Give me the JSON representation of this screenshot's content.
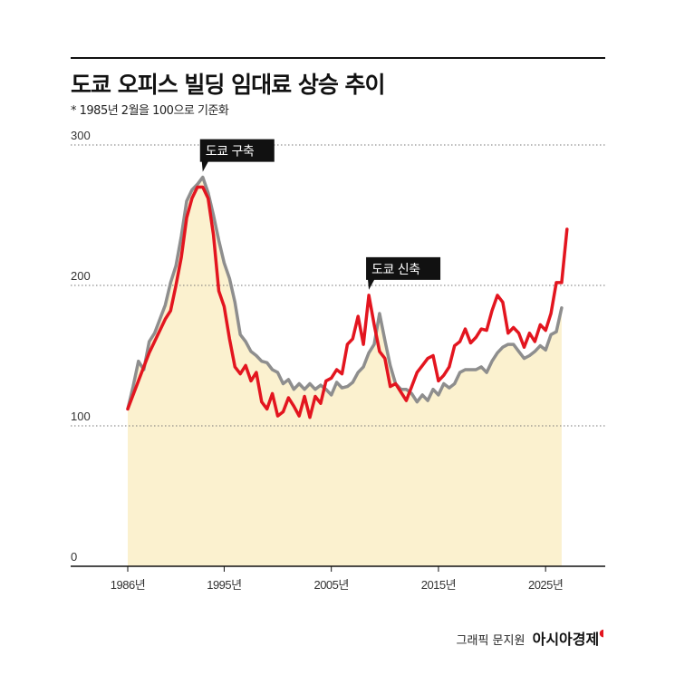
{
  "header": {
    "title": "도쿄 오피스 빌딩 임대료 상승 추이",
    "subtitle": "* 1985년 2월을 100으로 기준화"
  },
  "credit": {
    "prefix": "그래픽 문지원",
    "brand": "아시아경제"
  },
  "colors": {
    "new_line": "#e3151f",
    "old_line": "#8e8e8e",
    "area_fill": "#fbf1cf",
    "grid": "#777777"
  },
  "chart_data": {
    "type": "line",
    "title": "도쿄 오피스 빌딩 임대료 상승 추이",
    "subtitle": "* 1985년 2월을 100으로 기준화",
    "xlim": [
      1986,
      2026
    ],
    "ylim": [
      0,
      300
    ],
    "yticks": [
      0,
      100,
      200,
      300
    ],
    "yticks_labels": [
      "0",
      "100",
      "200",
      "300"
    ],
    "xticks": [
      1986,
      1995,
      2005,
      2015,
      2025
    ],
    "xticks_labels": [
      "1986년",
      "1995년",
      "2005년",
      "2015년",
      "2025년"
    ],
    "grid": "dotted horizontal",
    "legend": "none",
    "area_under": "old",
    "series": [
      {
        "key": "new",
        "points": [
          [
            1986,
            112
          ],
          [
            1986.5,
            122
          ],
          [
            1987,
            132
          ],
          [
            1987.5,
            142
          ],
          [
            1988,
            152
          ],
          [
            1988.5,
            160
          ],
          [
            1989,
            168
          ],
          [
            1989.5,
            176
          ],
          [
            1990,
            182
          ],
          [
            1990.5,
            200
          ],
          [
            1991,
            220
          ],
          [
            1991.5,
            248
          ],
          [
            1992,
            262
          ],
          [
            1992.5,
            270
          ],
          [
            1993,
            270
          ],
          [
            1993.5,
            262
          ],
          [
            1994,
            236
          ],
          [
            1994.5,
            196
          ],
          [
            1995,
            185
          ],
          [
            1995.5,
            162
          ],
          [
            1996,
            142
          ],
          [
            1996.5,
            137
          ],
          [
            1997,
            143
          ],
          [
            1997.5,
            132
          ],
          [
            1998,
            138
          ],
          [
            1998.5,
            117
          ],
          [
            1999,
            112
          ],
          [
            1999.5,
            123
          ],
          [
            2000,
            107
          ],
          [
            2000.5,
            110
          ],
          [
            2001,
            120
          ],
          [
            2001.5,
            114
          ],
          [
            2002,
            107
          ],
          [
            2002.5,
            121
          ],
          [
            2003,
            106
          ],
          [
            2003.5,
            121
          ],
          [
            2004,
            116
          ],
          [
            2004.5,
            132
          ],
          [
            2005,
            134
          ],
          [
            2005.5,
            140
          ],
          [
            2006,
            137
          ],
          [
            2006.5,
            158
          ],
          [
            2007,
            162
          ],
          [
            2007.5,
            178
          ],
          [
            2008,
            158
          ],
          [
            2008.5,
            193
          ],
          [
            2009,
            172
          ],
          [
            2009.5,
            153
          ],
          [
            2010,
            148
          ],
          [
            2010.5,
            128
          ],
          [
            2011,
            130
          ],
          [
            2011.5,
            124
          ],
          [
            2012,
            118
          ],
          [
            2012.5,
            128
          ],
          [
            2013,
            138
          ],
          [
            2013.5,
            143
          ],
          [
            2014,
            148
          ],
          [
            2014.5,
            150
          ],
          [
            2015,
            132
          ],
          [
            2015.5,
            136
          ],
          [
            2016,
            142
          ],
          [
            2016.5,
            157
          ],
          [
            2017,
            160
          ],
          [
            2017.5,
            169
          ],
          [
            2018,
            159
          ],
          [
            2018.5,
            163
          ],
          [
            2019,
            169
          ],
          [
            2019.5,
            168
          ],
          [
            2020,
            182
          ],
          [
            2020.5,
            193
          ],
          [
            2021,
            188
          ],
          [
            2021.5,
            166
          ],
          [
            2022,
            170
          ],
          [
            2022.5,
            166
          ],
          [
            2023,
            156
          ],
          [
            2023.5,
            166
          ],
          [
            2024,
            160
          ],
          [
            2024.5,
            172
          ],
          [
            2025,
            168
          ],
          [
            2025.5,
            180
          ],
          [
            2026,
            202
          ],
          [
            2026.5,
            202
          ],
          [
            2027,
            240
          ]
        ]
      },
      {
        "key": "old",
        "points": [
          [
            1986,
            112
          ],
          [
            1986.5,
            128
          ],
          [
            1987,
            146
          ],
          [
            1987.5,
            140
          ],
          [
            1988,
            160
          ],
          [
            1988.5,
            166
          ],
          [
            1989,
            176
          ],
          [
            1989.5,
            186
          ],
          [
            1990,
            202
          ],
          [
            1990.5,
            214
          ],
          [
            1991,
            235
          ],
          [
            1991.5,
            260
          ],
          [
            1992,
            268
          ],
          [
            1992.5,
            272
          ],
          [
            1993,
            277
          ],
          [
            1993.5,
            266
          ],
          [
            1994,
            250
          ],
          [
            1994.5,
            232
          ],
          [
            1995,
            216
          ],
          [
            1995.5,
            205
          ],
          [
            1996,
            188
          ],
          [
            1996.5,
            165
          ],
          [
            1997,
            160
          ],
          [
            1997.5,
            153
          ],
          [
            1998,
            150
          ],
          [
            1998.5,
            146
          ],
          [
            1999,
            145
          ],
          [
            1999.5,
            140
          ],
          [
            2000,
            138
          ],
          [
            2000.5,
            130
          ],
          [
            2001,
            133
          ],
          [
            2001.5,
            126
          ],
          [
            2002,
            130
          ],
          [
            2002.5,
            126
          ],
          [
            2003,
            130
          ],
          [
            2003.5,
            126
          ],
          [
            2004,
            129
          ],
          [
            2004.5,
            126
          ],
          [
            2005,
            122
          ],
          [
            2005.5,
            131
          ],
          [
            2006,
            127
          ],
          [
            2006.5,
            128
          ],
          [
            2007,
            131
          ],
          [
            2007.5,
            138
          ],
          [
            2008,
            142
          ],
          [
            2008.5,
            152
          ],
          [
            2009,
            158
          ],
          [
            2009.5,
            180
          ],
          [
            2010,
            161
          ],
          [
            2010.5,
            143
          ],
          [
            2011,
            130
          ],
          [
            2011.5,
            126
          ],
          [
            2012,
            126
          ],
          [
            2012.5,
            123
          ],
          [
            2013,
            117
          ],
          [
            2013.5,
            122
          ],
          [
            2014,
            118
          ],
          [
            2014.5,
            126
          ],
          [
            2015,
            122
          ],
          [
            2015.5,
            130
          ],
          [
            2016,
            127
          ],
          [
            2016.5,
            130
          ],
          [
            2017,
            138
          ],
          [
            2017.5,
            140
          ],
          [
            2018,
            140
          ],
          [
            2018.5,
            140
          ],
          [
            2019,
            142
          ],
          [
            2019.5,
            138
          ],
          [
            2020,
            146
          ],
          [
            2020.5,
            152
          ],
          [
            2021,
            156
          ],
          [
            2021.5,
            158
          ],
          [
            2022,
            158
          ],
          [
            2022.5,
            153
          ],
          [
            2023,
            148
          ],
          [
            2023.5,
            150
          ],
          [
            2024,
            153
          ],
          [
            2024.5,
            157
          ],
          [
            2025,
            154
          ],
          [
            2025.5,
            165
          ],
          [
            2026,
            167
          ],
          [
            2026.5,
            184
          ]
        ]
      }
    ],
    "annotations": [
      {
        "label": "도쿄 구축",
        "x": 1993,
        "y": 277,
        "target": "old"
      },
      {
        "label": "도쿄 신축",
        "x": 2008.5,
        "y": 193,
        "target": "new"
      }
    ]
  }
}
